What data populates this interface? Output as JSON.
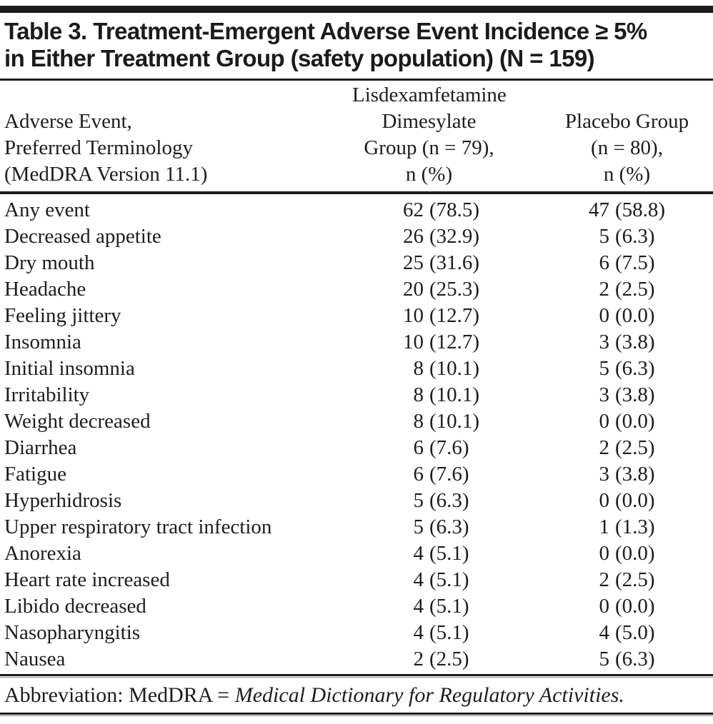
{
  "title": {
    "lines": [
      "Table 3. Treatment-Emergent Adverse Event Incidence ≥ 5%",
      "in Either Treatment Group (safety population) (N = 159)"
    ]
  },
  "header": {
    "col1_lines": [
      "Adverse Event,",
      "Preferred Terminology",
      "(MedDRA Version 11.1)"
    ],
    "col2_lines": [
      "Lisdexamfetamine",
      "Dimesylate",
      "Group (n = 79),",
      "n (%)"
    ],
    "col3_lines": [
      "Placebo Group",
      "(n = 80),",
      "n (%)"
    ]
  },
  "rows": [
    {
      "event": "Any event",
      "ldx_n": "62",
      "ldx_pct": "(78.5)",
      "pbo_n": "47",
      "pbo_pct": "(58.8)"
    },
    {
      "event": "Decreased appetite",
      "ldx_n": "26",
      "ldx_pct": "(32.9)",
      "pbo_n": "5",
      "pbo_pct": "(6.3)"
    },
    {
      "event": "Dry mouth",
      "ldx_n": "25",
      "ldx_pct": "(31.6)",
      "pbo_n": "6",
      "pbo_pct": "(7.5)"
    },
    {
      "event": "Headache",
      "ldx_n": "20",
      "ldx_pct": "(25.3)",
      "pbo_n": "2",
      "pbo_pct": "(2.5)"
    },
    {
      "event": "Feeling jittery",
      "ldx_n": "10",
      "ldx_pct": "(12.7)",
      "pbo_n": "0",
      "pbo_pct": "(0.0)"
    },
    {
      "event": "Insomnia",
      "ldx_n": "10",
      "ldx_pct": "(12.7)",
      "pbo_n": "3",
      "pbo_pct": "(3.8)"
    },
    {
      "event": "Initial insomnia",
      "ldx_n": "8",
      "ldx_pct": "(10.1)",
      "pbo_n": "5",
      "pbo_pct": "(6.3)"
    },
    {
      "event": "Irritability",
      "ldx_n": "8",
      "ldx_pct": "(10.1)",
      "pbo_n": "3",
      "pbo_pct": "(3.8)"
    },
    {
      "event": "Weight decreased",
      "ldx_n": "8",
      "ldx_pct": "(10.1)",
      "pbo_n": "0",
      "pbo_pct": "(0.0)"
    },
    {
      "event": "Diarrhea",
      "ldx_n": "6",
      "ldx_pct": "(7.6)",
      "pbo_n": "2",
      "pbo_pct": "(2.5)"
    },
    {
      "event": "Fatigue",
      "ldx_n": "6",
      "ldx_pct": "(7.6)",
      "pbo_n": "3",
      "pbo_pct": "(3.8)"
    },
    {
      "event": "Hyperhidrosis",
      "ldx_n": "5",
      "ldx_pct": "(6.3)",
      "pbo_n": "0",
      "pbo_pct": "(0.0)"
    },
    {
      "event": "Upper respiratory tract infection",
      "ldx_n": "5",
      "ldx_pct": "(6.3)",
      "pbo_n": "1",
      "pbo_pct": "(1.3)"
    },
    {
      "event": "Anorexia",
      "ldx_n": "4",
      "ldx_pct": "(5.1)",
      "pbo_n": "0",
      "pbo_pct": "(0.0)"
    },
    {
      "event": "Heart rate increased",
      "ldx_n": "4",
      "ldx_pct": "(5.1)",
      "pbo_n": "2",
      "pbo_pct": "(2.5)"
    },
    {
      "event": "Libido decreased",
      "ldx_n": "4",
      "ldx_pct": "(5.1)",
      "pbo_n": "0",
      "pbo_pct": "(0.0)"
    },
    {
      "event": "Nasopharyngitis",
      "ldx_n": "4",
      "ldx_pct": "(5.1)",
      "pbo_n": "4",
      "pbo_pct": "(5.0)"
    },
    {
      "event": "Nausea",
      "ldx_n": "2",
      "ldx_pct": "(2.5)",
      "pbo_n": "5",
      "pbo_pct": "(6.3)"
    }
  ],
  "footnote": {
    "prefix": "Abbreviation: MedDRA = ",
    "italic": "Medical Dictionary for Regulatory Activities."
  },
  "colors": {
    "text": "#1d1d1d",
    "rule": "#1c1c1c",
    "background": "#ffffff"
  }
}
